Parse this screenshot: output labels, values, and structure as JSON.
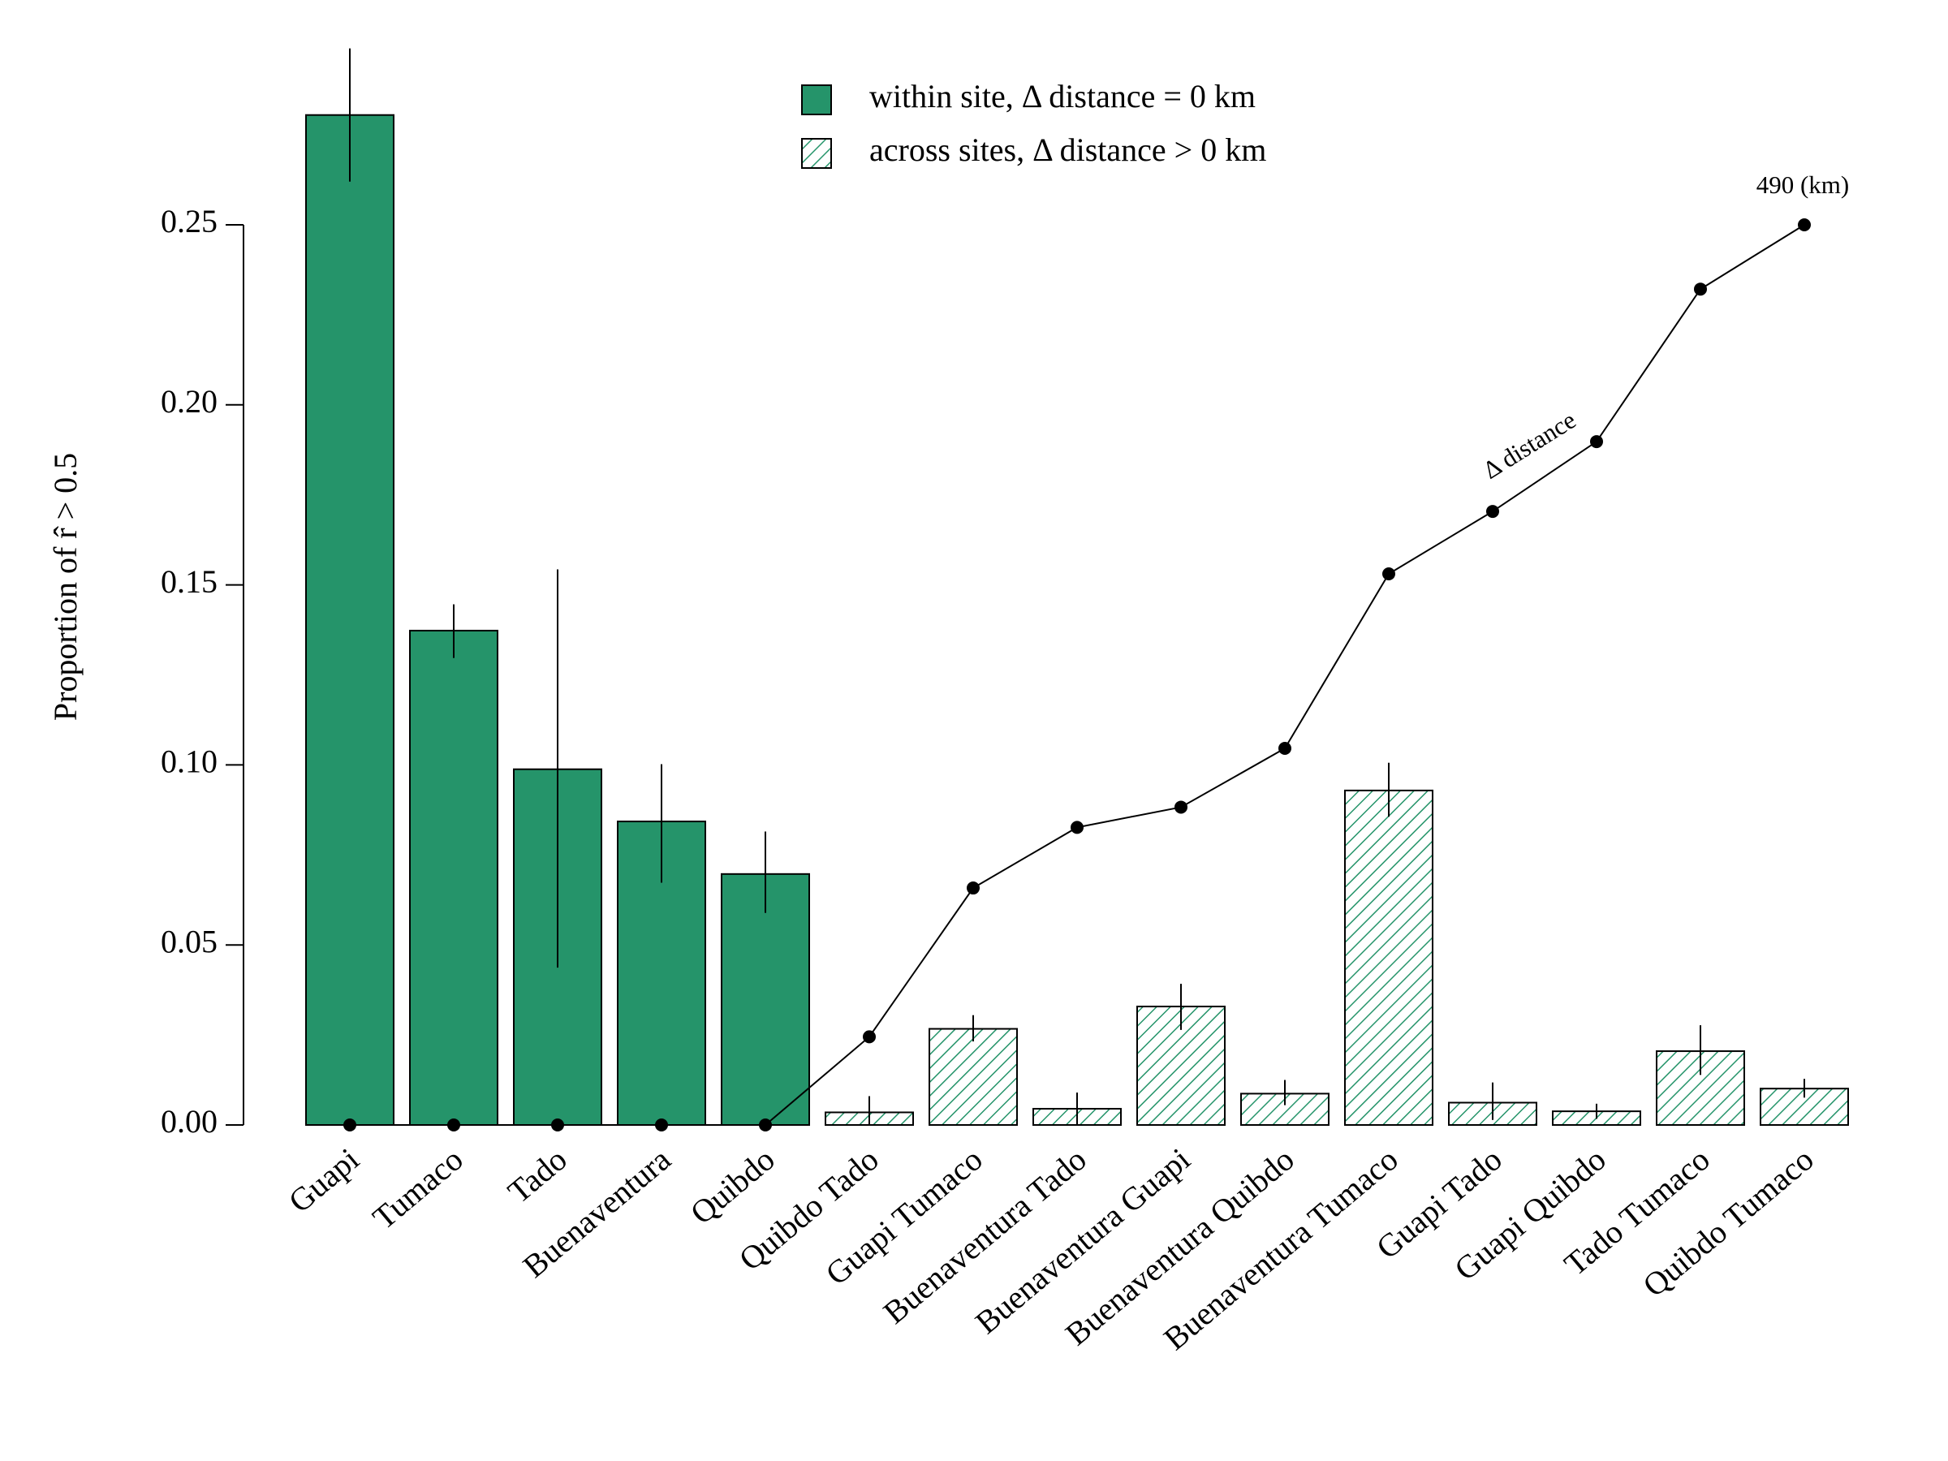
{
  "chart_data": {
    "type": "bar",
    "ylabel": "Proportion of r̂ > 0.5",
    "categories": [
      "Guapi",
      "Tumaco",
      "Tado",
      "Buenaventura",
      "Quibdo",
      "Quibdo Tado",
      "Guapi Tumaco",
      "Buenaventura Tado",
      "Buenaventura Guapi",
      "Buenaventura Quibdo",
      "Buenaventura Tumaco",
      "Guapi Tado",
      "Guapi Quibdo",
      "Tado Tumaco",
      "Quibdo Tumaco"
    ],
    "series": [
      {
        "name": "within site, Δ distance = 0 km",
        "color": "#25946a",
        "hatch": false,
        "values": [
          0.2805,
          0.1373,
          0.0988,
          0.0843,
          0.0697,
          null,
          null,
          null,
          null,
          null,
          null,
          null,
          null,
          null,
          null
        ],
        "err_low": [
          0.262,
          0.1297,
          0.0437,
          0.0673,
          0.0589,
          null,
          null,
          null,
          null,
          null,
          null,
          null,
          null,
          null,
          null
        ],
        "err_high": [
          0.299,
          0.1446,
          0.1543,
          0.1002,
          0.0815,
          null,
          null,
          null,
          null,
          null,
          null,
          null,
          null,
          null,
          null
        ]
      },
      {
        "name": "across sites, Δ distance > 0 km",
        "color": "#25946a",
        "hatch": true,
        "values": [
          null,
          null,
          null,
          null,
          null,
          0.0035,
          0.0267,
          0.0045,
          0.0329,
          0.0087,
          0.0929,
          0.0062,
          0.0038,
          0.0205,
          0.0101
        ],
        "err_low": [
          null,
          null,
          null,
          null,
          null,
          0,
          0.0232,
          0,
          0.0264,
          0.0055,
          0.0856,
          0.0014,
          0.0017,
          0.0139,
          0.0076
        ],
        "err_high": [
          null,
          null,
          null,
          null,
          null,
          0.008,
          0.0305,
          0.009,
          0.0392,
          0.0125,
          0.1006,
          0.0118,
          0.0059,
          0.0277,
          0.0128
        ]
      },
      {
        "name": "Δ distance",
        "color": "#000000",
        "axis": "y2",
        "type": "line",
        "values": [
          0,
          0,
          0,
          0,
          0,
          48,
          129,
          162,
          173,
          205,
          300,
          334,
          372,
          455,
          490
        ]
      }
    ],
    "ylim": [
      0,
      0.25
    ],
    "yticks": [
      {
        "value": 0,
        "label": "0.00"
      },
      0.05,
      {
        "value": 0.1,
        "label": "0.10"
      },
      0.15,
      {
        "value": 0.2,
        "label": "0.20"
      },
      0.25
    ],
    "y2lim": [
      0,
      490
    ],
    "annotations": [
      "490 (km)",
      "Δ distance"
    ],
    "legend": "top"
  }
}
